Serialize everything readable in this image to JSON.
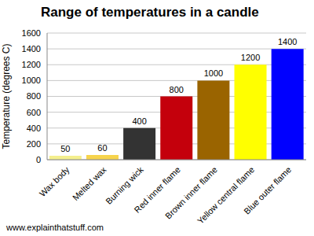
{
  "chart_data": {
    "type": "bar",
    "title": "Range of temperatures in a candle",
    "y_label": "Temperature (degrees C)",
    "footer": "www.explainthatstuff.com",
    "categories": [
      "Wax body",
      "Melted wax",
      "Burning wick",
      "Red inner flame",
      "Brown inner flame",
      "Yellow central flame",
      "Blue outer flame"
    ],
    "values": [
      50,
      60,
      400,
      800,
      1000,
      1200,
      1400
    ],
    "colors": [
      "#f4ef8e",
      "#f7d44c",
      "#333333",
      "#c4000c",
      "#9a6400",
      "#ffff00",
      "#0000ff"
    ],
    "ylim": [
      0,
      1600
    ],
    "yticks": [
      0,
      200,
      400,
      600,
      800,
      1000,
      1200,
      1400,
      1600
    ],
    "grid": true,
    "data_labels": true
  }
}
